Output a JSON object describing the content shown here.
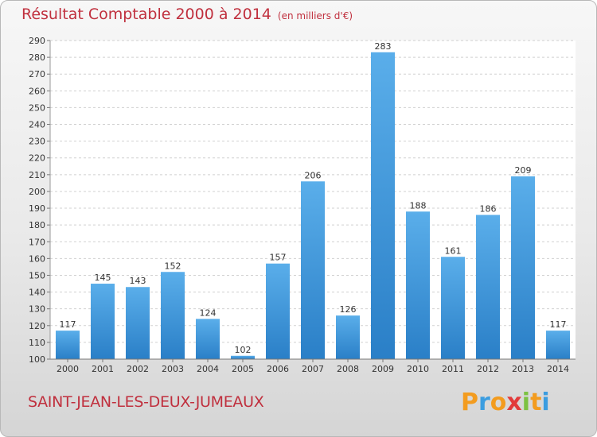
{
  "header": {
    "title": "Résultat Comptable 2000 à 2014",
    "subtitle": "(en milliers d'€)"
  },
  "footer": {
    "commune": "SAINT-JEAN-LES-DEUX-JUMEAUX",
    "logo_letters": [
      "P",
      "r",
      "o",
      "x",
      "i",
      "t",
      "i"
    ],
    "logo_colors": [
      "#f39c1f",
      "#3b9de0",
      "#f39c1f",
      "#e23b3b",
      "#7cc242",
      "#f39c1f",
      "#3b9de0"
    ]
  },
  "chart_data": {
    "type": "bar",
    "title": "Résultat Comptable 2000 à 2014",
    "xlabel": "",
    "ylabel": "",
    "categories": [
      "2000",
      "2001",
      "2002",
      "2003",
      "2004",
      "2005",
      "2006",
      "2007",
      "2008",
      "2009",
      "2010",
      "2011",
      "2012",
      "2013",
      "2014"
    ],
    "values": [
      117,
      145,
      143,
      152,
      124,
      102,
      157,
      206,
      126,
      283,
      188,
      161,
      186,
      209,
      117
    ],
    "ylim": [
      100,
      290
    ],
    "ytick_step": 10,
    "grid": true,
    "bar_color_top": "#5aaeea",
    "bar_color_bottom": "#2a7fc7"
  }
}
